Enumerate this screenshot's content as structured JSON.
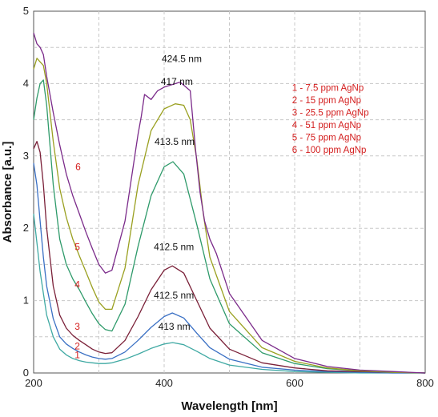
{
  "chart_data": {
    "type": "line",
    "title": "",
    "xlabel": "Wavelength [nm]",
    "ylabel": "Absorbance [a.u.]",
    "xlim": [
      200,
      800
    ],
    "ylim": [
      0,
      5
    ],
    "x_ticks": [
      "200",
      "400",
      "600",
      "800"
    ],
    "y_ticks": [
      "0",
      "1",
      "2",
      "3",
      "4",
      "5"
    ],
    "grid": true,
    "legend_position": "top-right",
    "legend_color": "#d42020",
    "legend": [
      "1 - 7.5 ppm AgNp",
      "2 - 15 ppm AgNp",
      "3 - 25.5 ppm AgNp",
      "4 - 51 ppm AgNp",
      "5 - 75 ppm AgNp",
      "6 - 100 ppm AgNp"
    ],
    "series": [
      {
        "name": "1",
        "color": "#3fa9a3",
        "label_at": [
          267,
          0.25
        ],
        "x": [
          200,
          205,
          210,
          215,
          220,
          230,
          240,
          250,
          260,
          270,
          280,
          290,
          300,
          310,
          320,
          340,
          360,
          380,
          400,
          413,
          430,
          450,
          470,
          500,
          550,
          600,
          650,
          700,
          750,
          800
        ],
        "y": [
          2.2,
          1.8,
          1.4,
          1.1,
          0.8,
          0.5,
          0.33,
          0.25,
          0.2,
          0.17,
          0.15,
          0.14,
          0.13,
          0.13,
          0.14,
          0.19,
          0.26,
          0.34,
          0.4,
          0.42,
          0.39,
          0.3,
          0.2,
          0.11,
          0.05,
          0.02,
          0.01,
          0.0,
          0.0,
          0.0
        ]
      },
      {
        "name": "2",
        "color": "#3a70c4",
        "label_at": [
          267,
          0.37
        ],
        "x": [
          200,
          205,
          210,
          215,
          220,
          230,
          240,
          250,
          260,
          270,
          280,
          290,
          300,
          310,
          320,
          340,
          360,
          380,
          400,
          412.5,
          430,
          450,
          470,
          500,
          550,
          600,
          650,
          700,
          750,
          800
        ],
        "y": [
          2.9,
          2.6,
          2.1,
          1.6,
          1.2,
          0.75,
          0.5,
          0.4,
          0.34,
          0.29,
          0.25,
          0.22,
          0.2,
          0.19,
          0.2,
          0.29,
          0.45,
          0.63,
          0.78,
          0.83,
          0.76,
          0.55,
          0.35,
          0.19,
          0.08,
          0.04,
          0.02,
          0.01,
          0.0,
          0.0
        ]
      },
      {
        "name": "3",
        "color": "#7a2038",
        "label_at": [
          267,
          0.64
        ],
        "x": [
          200,
          205,
          210,
          215,
          220,
          230,
          240,
          250,
          260,
          270,
          280,
          290,
          300,
          310,
          320,
          340,
          360,
          380,
          400,
          412.5,
          430,
          450,
          470,
          500,
          550,
          600,
          650,
          700,
          750,
          800
        ],
        "y": [
          3.1,
          3.2,
          3.05,
          2.6,
          2.0,
          1.2,
          0.8,
          0.62,
          0.52,
          0.45,
          0.39,
          0.33,
          0.29,
          0.27,
          0.28,
          0.45,
          0.78,
          1.15,
          1.42,
          1.48,
          1.38,
          1.0,
          0.62,
          0.33,
          0.14,
          0.07,
          0.03,
          0.02,
          0.01,
          0.0
        ]
      },
      {
        "name": "4",
        "color": "#2e9a6a",
        "label_at": [
          267,
          1.22
        ],
        "x": [
          200,
          205,
          210,
          215,
          220,
          230,
          240,
          250,
          260,
          270,
          280,
          290,
          300,
          310,
          320,
          340,
          360,
          380,
          400,
          413.5,
          430,
          450,
          470,
          500,
          550,
          600,
          650,
          700,
          750,
          800
        ],
        "y": [
          3.5,
          3.8,
          4.0,
          4.05,
          3.7,
          2.6,
          1.85,
          1.5,
          1.3,
          1.15,
          0.98,
          0.82,
          0.68,
          0.6,
          0.58,
          0.95,
          1.75,
          2.45,
          2.85,
          2.92,
          2.75,
          2.05,
          1.3,
          0.68,
          0.28,
          0.13,
          0.06,
          0.03,
          0.01,
          0.0
        ]
      },
      {
        "name": "5",
        "color": "#9aa020",
        "label_at": [
          267,
          1.74
        ],
        "x": [
          200,
          205,
          210,
          215,
          220,
          230,
          240,
          250,
          260,
          270,
          280,
          290,
          300,
          310,
          320,
          340,
          360,
          380,
          400,
          417,
          430,
          440,
          450,
          460,
          470,
          500,
          550,
          600,
          650,
          700,
          750,
          800
        ],
        "y": [
          4.2,
          4.35,
          4.3,
          4.25,
          4.0,
          3.2,
          2.55,
          2.15,
          1.85,
          1.62,
          1.4,
          1.18,
          0.98,
          0.88,
          0.88,
          1.45,
          2.6,
          3.35,
          3.65,
          3.72,
          3.7,
          3.5,
          2.95,
          2.2,
          1.6,
          0.85,
          0.35,
          0.16,
          0.07,
          0.03,
          0.01,
          0.0
        ]
      },
      {
        "name": "6",
        "color": "#7b2b8a",
        "label_at": [
          268,
          2.85
        ],
        "x": [
          200,
          205,
          210,
          215,
          220,
          230,
          240,
          250,
          260,
          270,
          280,
          290,
          300,
          310,
          320,
          340,
          360,
          365,
          370,
          380,
          390,
          400,
          410,
          424.5,
          440,
          448,
          455,
          462,
          470,
          480,
          500,
          550,
          600,
          650,
          700,
          750,
          800
        ],
        "y": [
          4.7,
          4.55,
          4.5,
          4.4,
          4.1,
          3.6,
          3.15,
          2.75,
          2.45,
          2.2,
          1.95,
          1.72,
          1.5,
          1.38,
          1.42,
          2.1,
          3.3,
          3.55,
          3.85,
          3.78,
          3.9,
          3.95,
          3.98,
          4.02,
          3.9,
          3.1,
          2.5,
          2.1,
          1.85,
          1.65,
          1.1,
          0.45,
          0.2,
          0.09,
          0.04,
          0.02,
          0.0
        ]
      }
    ],
    "peak_labels": [
      {
        "text": "424.5 nm",
        "at": [
          424.5,
          4.3
        ]
      },
      {
        "text": "417 nm",
        "at": [
          417,
          3.98
        ]
      },
      {
        "text": "413.5 nm",
        "at": [
          413.5,
          3.15
        ]
      },
      {
        "text": "412.5 nm",
        "at": [
          412.5,
          1.7
        ]
      },
      {
        "text": "412.5 nm",
        "at": [
          412.5,
          1.03
        ]
      },
      {
        "text": "413 nm",
        "at": [
          413,
          0.6
        ]
      }
    ]
  }
}
